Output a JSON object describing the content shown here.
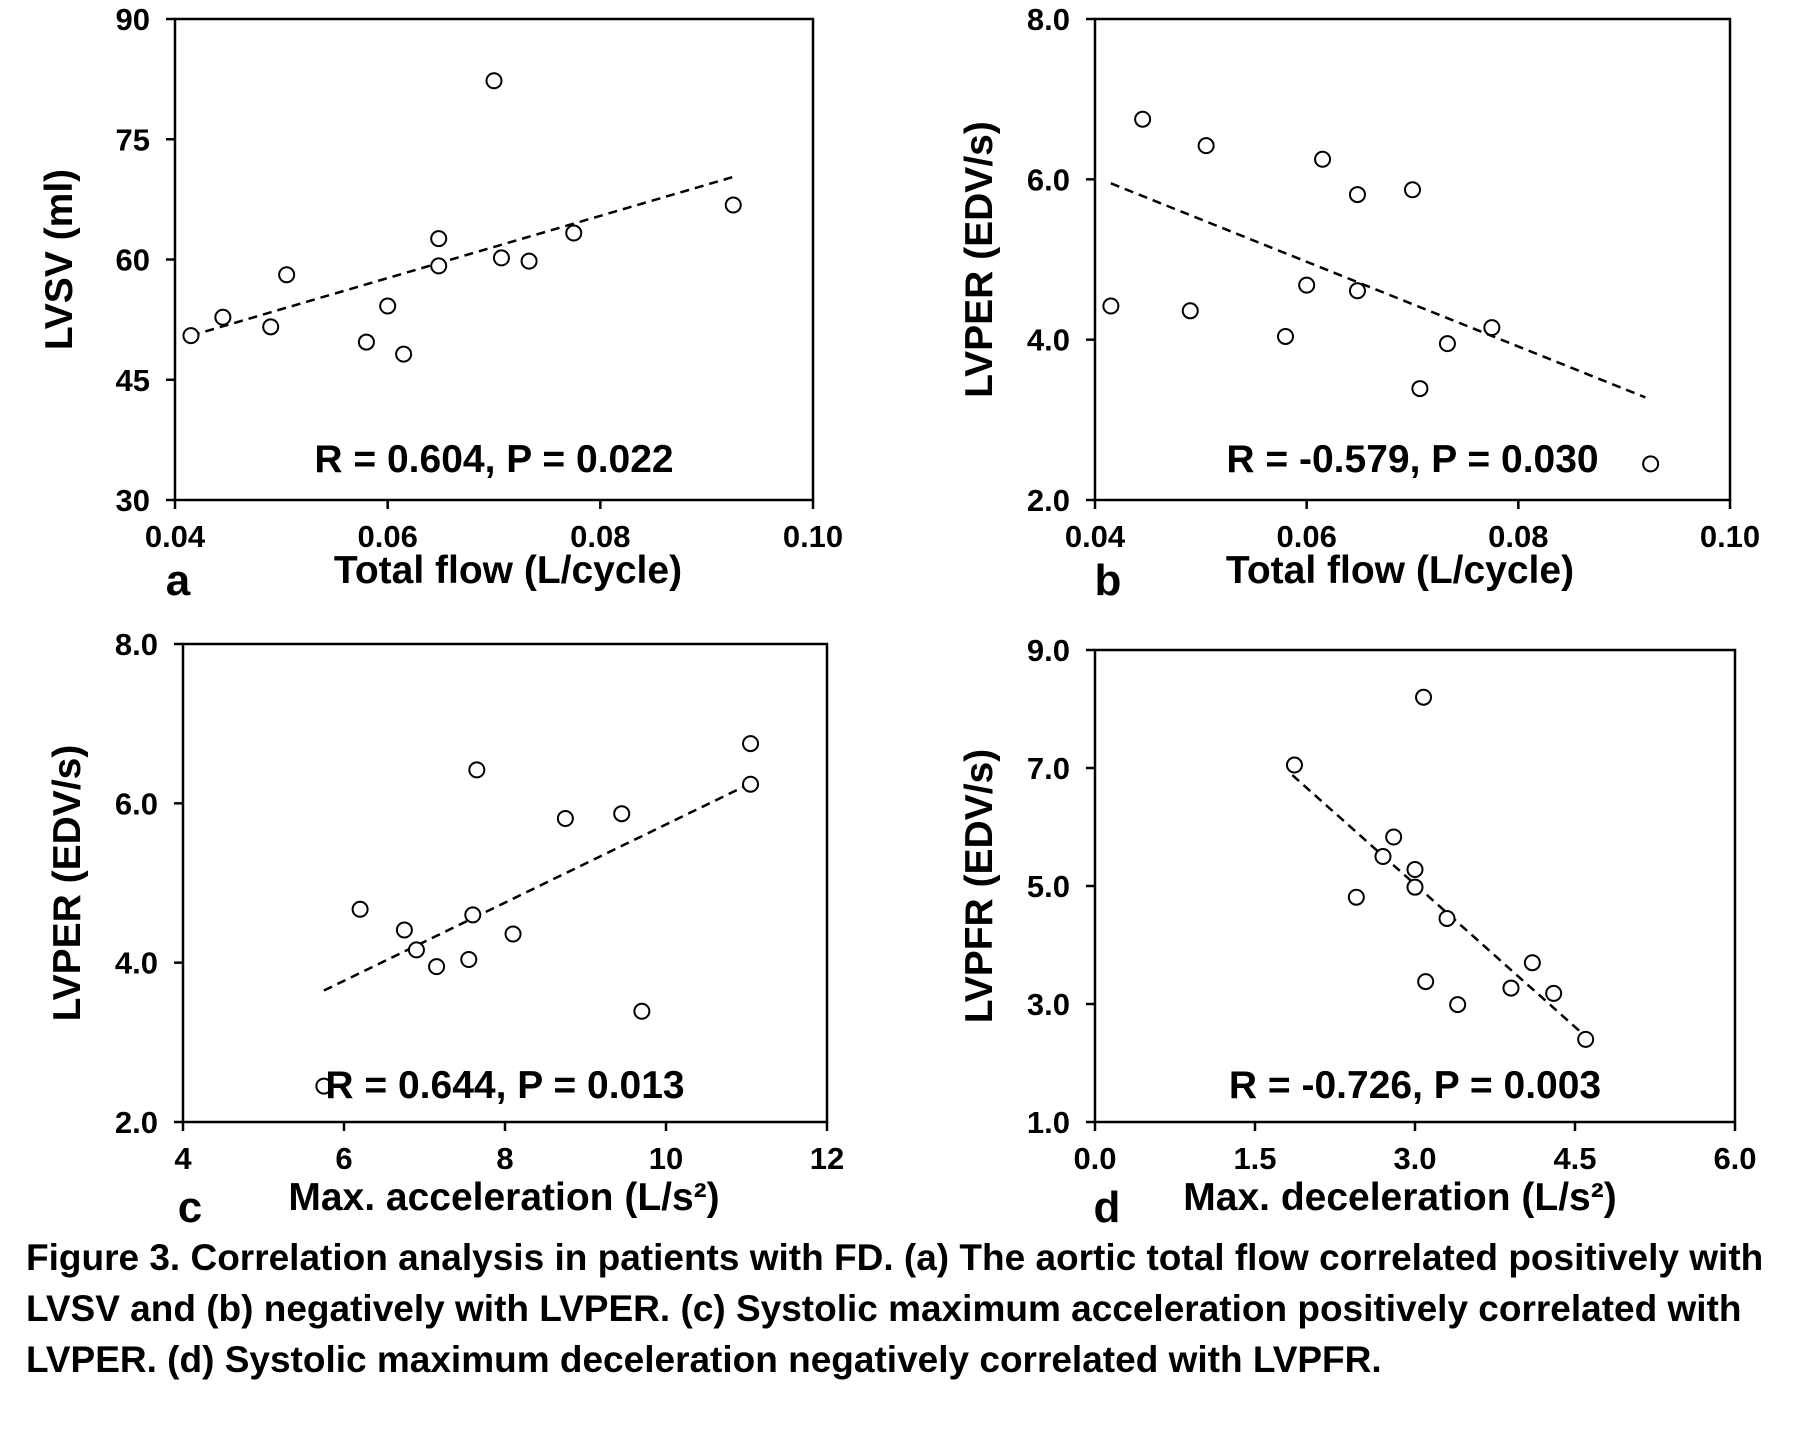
{
  "chart_data": [
    {
      "type": "scatter",
      "panel_letter": "a",
      "xlabel": "Total flow (L/cycle)",
      "ylabel": "LVSV (ml)",
      "xlim": [
        0.04,
        0.1
      ],
      "ylim": [
        30,
        90
      ],
      "xticks": [
        "0.04",
        "0.06",
        "0.08",
        "0.10"
      ],
      "yticks": [
        "30",
        "45",
        "60",
        "75",
        "90"
      ],
      "stat": "R = 0.604, P = 0.022",
      "points": [
        {
          "x": 0.0415,
          "y": 50.5
        },
        {
          "x": 0.0445,
          "y": 52.8
        },
        {
          "x": 0.049,
          "y": 51.6
        },
        {
          "x": 0.0505,
          "y": 58.1
        },
        {
          "x": 0.058,
          "y": 49.7
        },
        {
          "x": 0.06,
          "y": 54.2
        },
        {
          "x": 0.0615,
          "y": 48.2
        },
        {
          "x": 0.0648,
          "y": 62.6
        },
        {
          "x": 0.0648,
          "y": 59.2
        },
        {
          "x": 0.07,
          "y": 82.3
        },
        {
          "x": 0.0707,
          "y": 60.2
        },
        {
          "x": 0.0733,
          "y": 59.8
        },
        {
          "x": 0.0775,
          "y": 63.3
        },
        {
          "x": 0.0925,
          "y": 66.8
        }
      ],
      "trendline": [
        {
          "x": 0.0415,
          "y": 50.5
        },
        {
          "x": 0.0925,
          "y": 70.3
        }
      ]
    },
    {
      "type": "scatter",
      "panel_letter": "b",
      "xlabel": "Total flow (L/cycle)",
      "ylabel": "LVPER (EDV/s)",
      "xlim": [
        0.04,
        0.1
      ],
      "ylim": [
        2.0,
        8.0
      ],
      "xticks": [
        "0.04",
        "0.06",
        "0.08",
        "0.10"
      ],
      "yticks": [
        "2.0",
        "4.0",
        "6.0",
        "8.0"
      ],
      "stat": "R = -0.579, P = 0.030",
      "points": [
        {
          "x": 0.0415,
          "y": 4.42
        },
        {
          "x": 0.0445,
          "y": 6.75
        },
        {
          "x": 0.049,
          "y": 4.36
        },
        {
          "x": 0.0505,
          "y": 6.42
        },
        {
          "x": 0.058,
          "y": 4.04
        },
        {
          "x": 0.06,
          "y": 4.68
        },
        {
          "x": 0.0615,
          "y": 6.25
        },
        {
          "x": 0.0648,
          "y": 5.81
        },
        {
          "x": 0.0648,
          "y": 4.61
        },
        {
          "x": 0.07,
          "y": 5.87
        },
        {
          "x": 0.0707,
          "y": 3.39
        },
        {
          "x": 0.0733,
          "y": 3.95
        },
        {
          "x": 0.0775,
          "y": 4.15
        },
        {
          "x": 0.0925,
          "y": 2.45
        }
      ],
      "trendline": [
        {
          "x": 0.0415,
          "y": 5.95
        },
        {
          "x": 0.092,
          "y": 3.28
        }
      ]
    },
    {
      "type": "scatter",
      "panel_letter": "c",
      "xlabel": "Max. acceleration (L/s²)",
      "ylabel": "LVPER (EDV/s)",
      "xlim": [
        4,
        12
      ],
      "ylim": [
        2.0,
        8.0
      ],
      "xticks": [
        "4",
        "6",
        "8",
        "10",
        "12"
      ],
      "yticks": [
        "2.0",
        "4.0",
        "6.0",
        "8.0"
      ],
      "stat": "R = 0.644, P = 0.013",
      "points": [
        {
          "x": 5.75,
          "y": 2.45
        },
        {
          "x": 6.2,
          "y": 4.67
        },
        {
          "x": 6.75,
          "y": 4.41
        },
        {
          "x": 6.9,
          "y": 4.16
        },
        {
          "x": 7.15,
          "y": 3.95
        },
        {
          "x": 7.55,
          "y": 4.04
        },
        {
          "x": 7.6,
          "y": 4.6
        },
        {
          "x": 7.65,
          "y": 6.42
        },
        {
          "x": 8.1,
          "y": 4.36
        },
        {
          "x": 8.75,
          "y": 5.81
        },
        {
          "x": 9.45,
          "y": 5.87
        },
        {
          "x": 9.7,
          "y": 3.39
        },
        {
          "x": 11.05,
          "y": 6.75
        },
        {
          "x": 11.05,
          "y": 6.24
        }
      ],
      "trendline": [
        {
          "x": 5.75,
          "y": 3.65
        },
        {
          "x": 11.05,
          "y": 6.25
        }
      ]
    },
    {
      "type": "scatter",
      "panel_letter": "d",
      "xlabel": "Max. deceleration (L/s²)",
      "ylabel": "LVPFR (EDV/s)",
      "xlim": [
        0.0,
        6.0
      ],
      "ylim": [
        1.0,
        9.0
      ],
      "xticks": [
        "0.0",
        "1.5",
        "3.0",
        "4.5",
        "6.0"
      ],
      "yticks": [
        "1.0",
        "3.0",
        "5.0",
        "7.0",
        "9.0"
      ],
      "stat": "R = -0.726, P = 0.003",
      "points": [
        {
          "x": 1.87,
          "y": 7.05
        },
        {
          "x": 2.45,
          "y": 4.81
        },
        {
          "x": 2.7,
          "y": 5.5
        },
        {
          "x": 2.8,
          "y": 5.83
        },
        {
          "x": 3.0,
          "y": 5.28
        },
        {
          "x": 3.0,
          "y": 4.98
        },
        {
          "x": 3.08,
          "y": 8.2
        },
        {
          "x": 3.1,
          "y": 3.38
        },
        {
          "x": 3.3,
          "y": 4.45
        },
        {
          "x": 3.4,
          "y": 2.99
        },
        {
          "x": 3.9,
          "y": 3.27
        },
        {
          "x": 4.1,
          "y": 3.7
        },
        {
          "x": 4.3,
          "y": 3.18
        },
        {
          "x": 4.6,
          "y": 2.4
        }
      ],
      "trendline": [
        {
          "x": 1.85,
          "y": 6.88
        },
        {
          "x": 4.6,
          "y": 2.45
        }
      ]
    }
  ],
  "caption": "Figure 3. Correlation analysis in patients with FD. (a) The aortic total flow correlated positively with LVSV and (b) negatively with LVPER. (c) Systolic maximum acceleration positively correlated with LVPER. (d) Systolic maximum deceleration negatively correlated with LVPFR."
}
